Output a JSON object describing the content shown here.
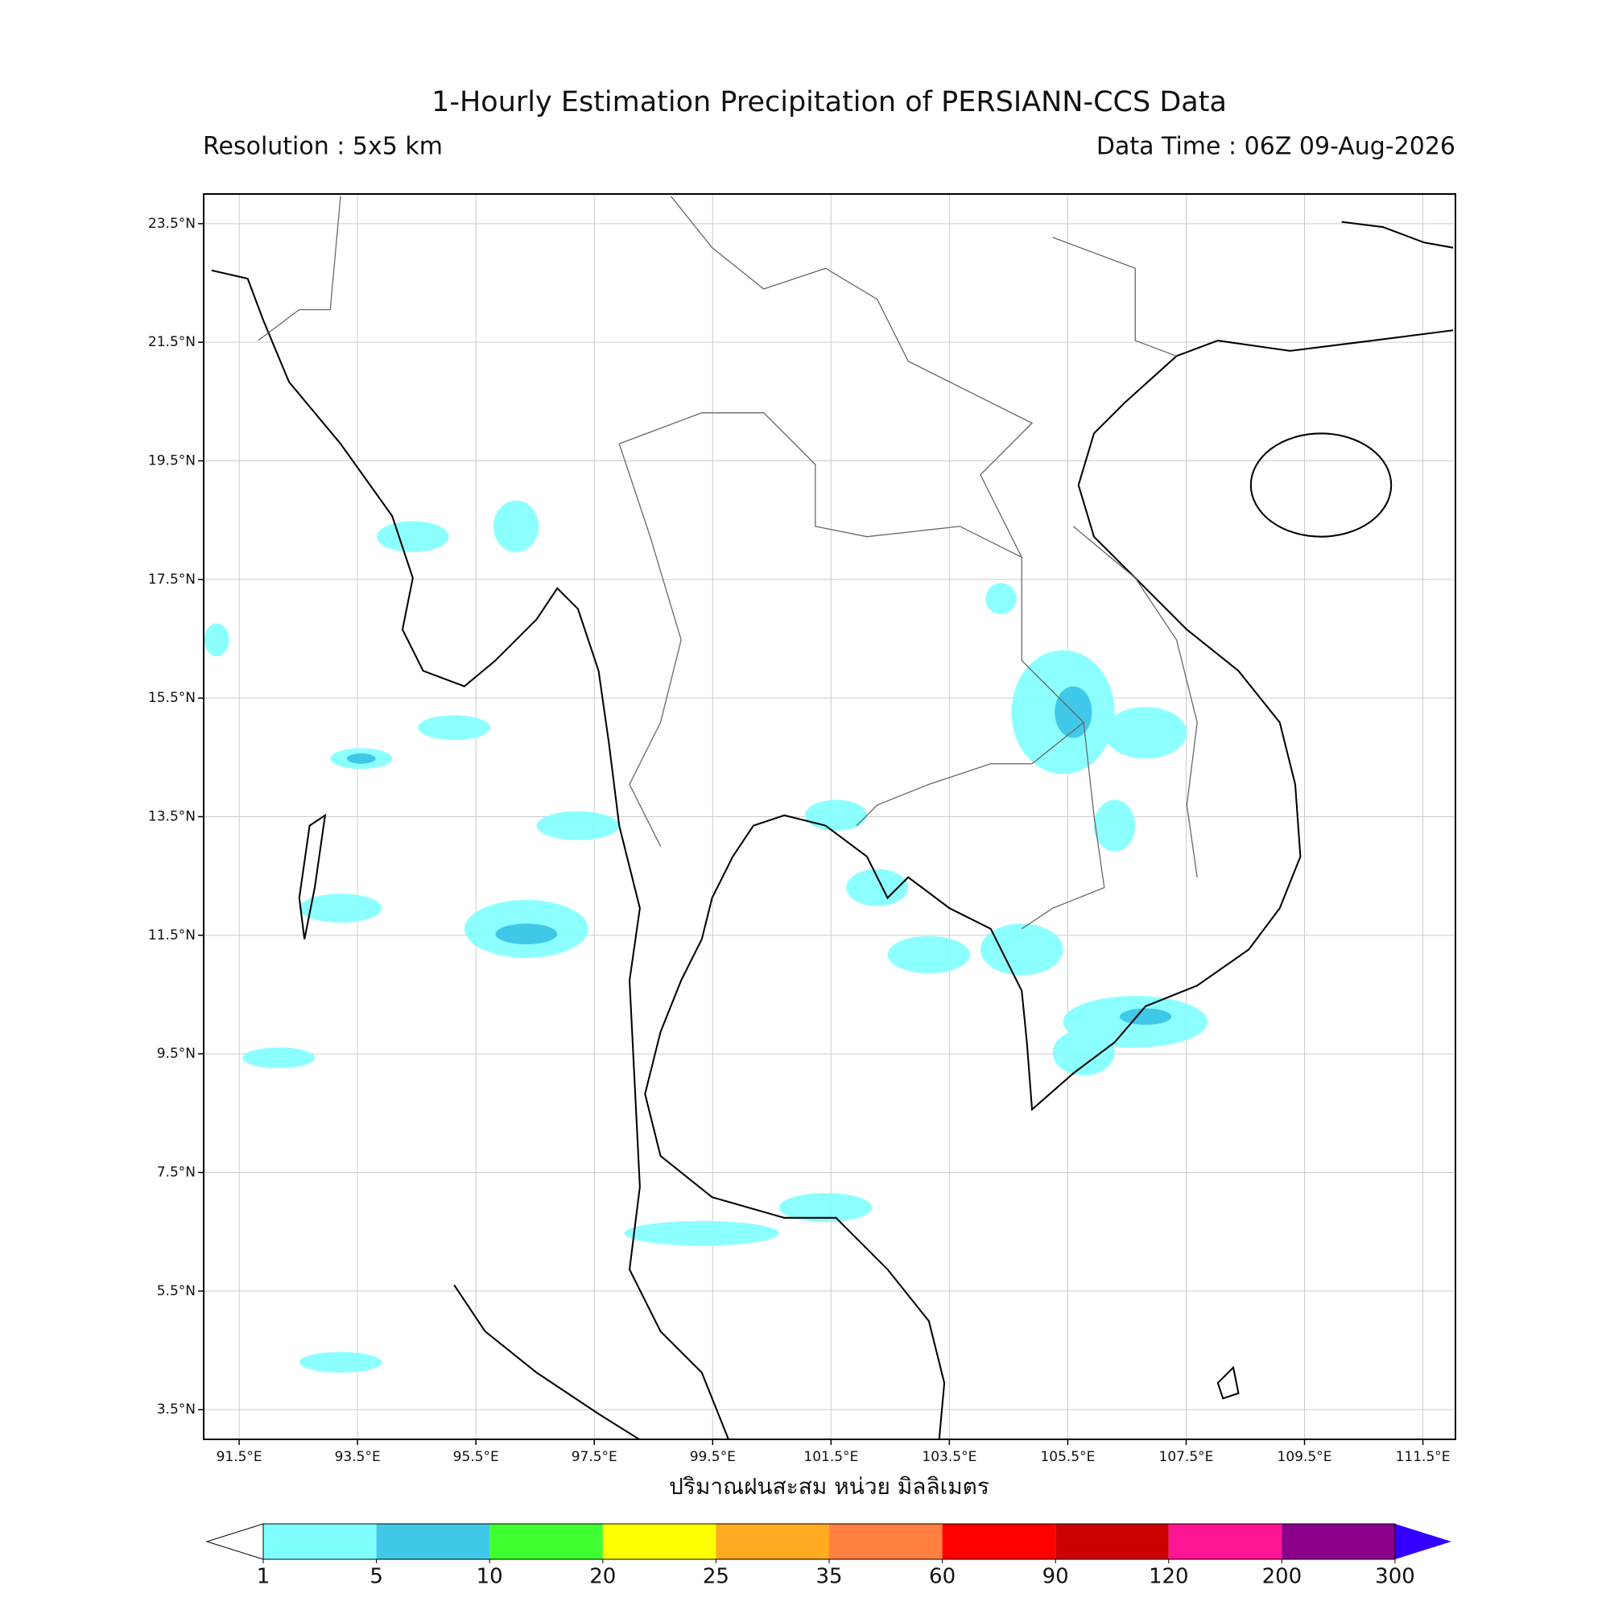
{
  "header": {
    "title": "1-Hourly Estimation Precipitation of PERSIANN-CCS Data",
    "resolution": "Resolution : 5x5 km",
    "data_time": "Data Time : 06Z 09-Aug-2026"
  },
  "map": {
    "xlim": [
      90.9,
      112.05
    ],
    "ylim": [
      3.0,
      24.0
    ],
    "xticks": [
      {
        "value": 91.5,
        "label": "91.5°E"
      },
      {
        "value": 93.5,
        "label": "93.5°E"
      },
      {
        "value": 95.5,
        "label": "95.5°E"
      },
      {
        "value": 97.5,
        "label": "97.5°E"
      },
      {
        "value": 99.5,
        "label": "99.5°E"
      },
      {
        "value": 101.5,
        "label": "101.5°E"
      },
      {
        "value": 103.5,
        "label": "103.5°E"
      },
      {
        "value": 105.5,
        "label": "105.5°E"
      },
      {
        "value": 107.5,
        "label": "107.5°E"
      },
      {
        "value": 109.5,
        "label": "109.5°E"
      },
      {
        "value": 111.5,
        "label": "111.5°E"
      }
    ],
    "yticks": [
      {
        "value": 3.5,
        "label": "3.5°N"
      },
      {
        "value": 5.5,
        "label": "5.5°N"
      },
      {
        "value": 7.5,
        "label": "7.5°N"
      },
      {
        "value": 9.5,
        "label": "9.5°N"
      },
      {
        "value": 11.5,
        "label": "11.5°N"
      },
      {
        "value": 13.5,
        "label": "13.5°N"
      },
      {
        "value": 15.5,
        "label": "15.5°N"
      },
      {
        "value": 17.5,
        "label": "17.5°N"
      },
      {
        "value": 19.5,
        "label": "19.5°N"
      },
      {
        "value": 21.5,
        "label": "21.5°N"
      },
      {
        "value": 23.5,
        "label": "23.5°N"
      }
    ],
    "grid": true,
    "xlabel": "ปริมาณฝนสะสม หน่วย มิลลิเมตร"
  },
  "colorbar": {
    "bounds": [
      1,
      5,
      10,
      20,
      25,
      35,
      60,
      90,
      120,
      200,
      300
    ],
    "colors": [
      "#80ffff",
      "#40c8e8",
      "#40ff30",
      "#ffff00",
      "#ffaa20",
      "#ff8040",
      "#ff0000",
      "#cc0000",
      "#ff1493",
      "#8b008b"
    ],
    "over_color": "#3300ff",
    "under_color": "#ffffff"
  }
}
